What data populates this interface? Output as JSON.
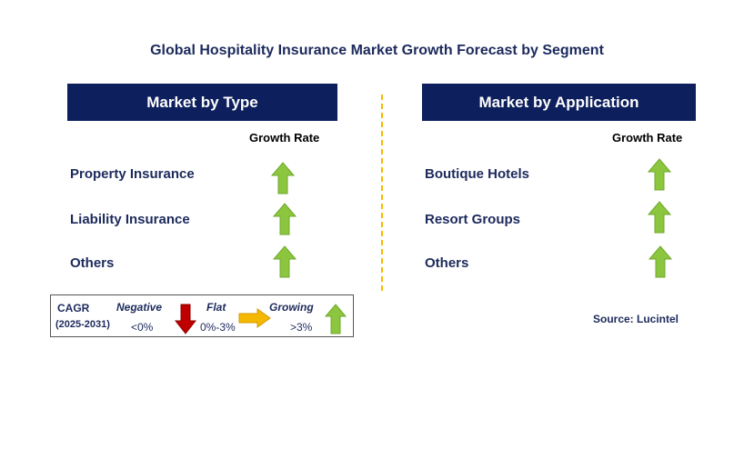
{
  "title": "Global Hospitality Insurance Market Growth Forecast by Segment",
  "left_panel": {
    "header": "Market by Type",
    "column_label": "Growth Rate",
    "rows": [
      {
        "label": "Property Insurance",
        "trend": "growing"
      },
      {
        "label": "Liability Insurance",
        "trend": "growing"
      },
      {
        "label": "Others",
        "trend": "growing"
      }
    ]
  },
  "right_panel": {
    "header": "Market by Application",
    "column_label": "Growth Rate",
    "rows": [
      {
        "label": "Boutique Hotels",
        "trend": "growing"
      },
      {
        "label": "Resort Groups",
        "trend": "growing"
      },
      {
        "label": "Others",
        "trend": "growing"
      }
    ]
  },
  "legend": {
    "cagr_label": "CAGR",
    "period": "(2025-2031)",
    "negative_label": "Negative",
    "negative_range": "<0%",
    "flat_label": "Flat",
    "flat_range": "0%-3%",
    "growing_label": "Growing",
    "growing_range": ">3%"
  },
  "source": "Source: Lucintel",
  "colors": {
    "header_bg": "#0d1f5c",
    "text_navy": "#1c2a5c",
    "divider": "#f5b800",
    "growing_arrow": "#8cc63f",
    "flat_arrow": "#f5b800",
    "negative_arrow": "#c00000"
  },
  "icons": {
    "growing": "up-arrow-icon",
    "flat": "right-arrow-icon",
    "negative": "down-arrow-icon"
  }
}
